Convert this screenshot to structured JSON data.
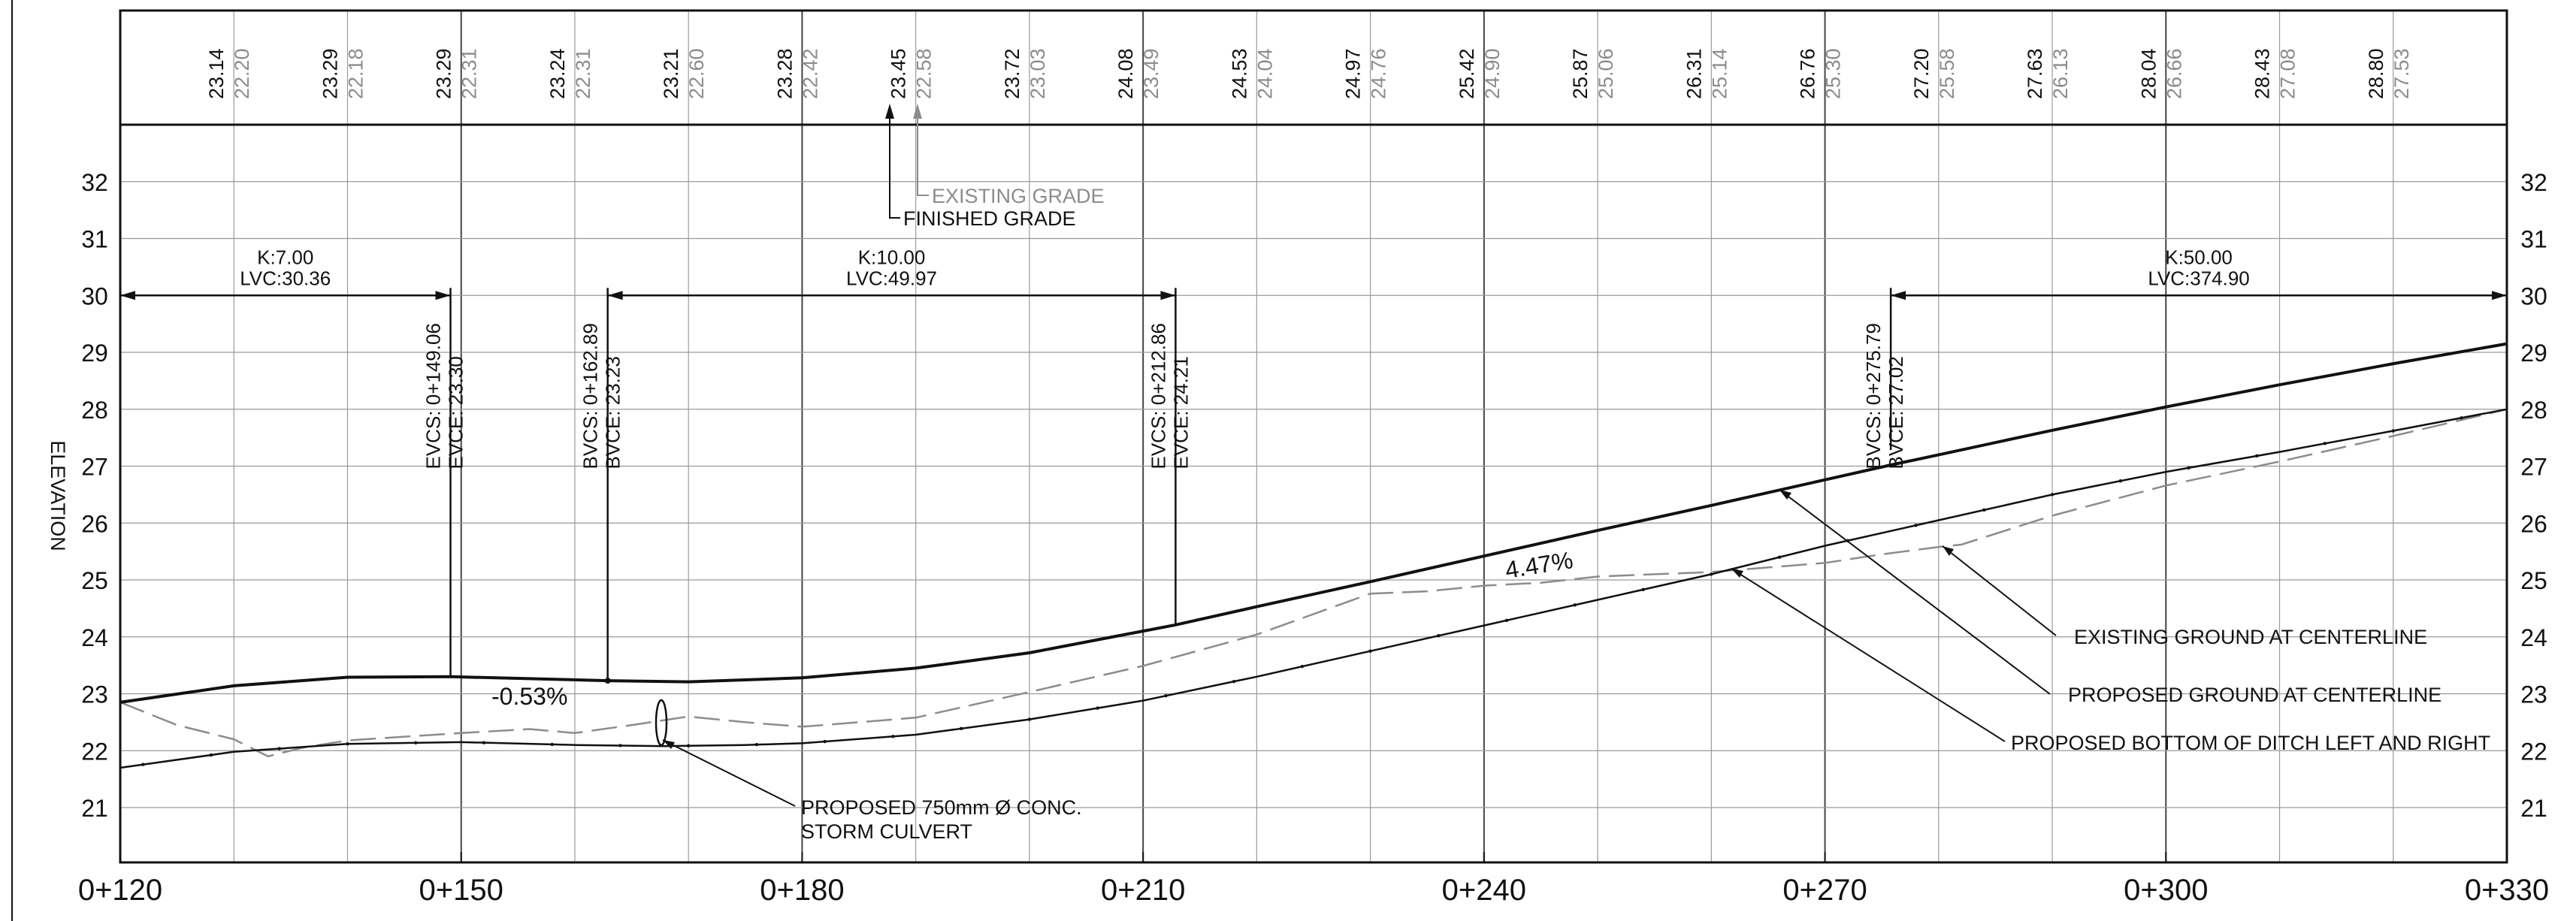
{
  "axis": {
    "y_label": "ELEVATION",
    "x_ticks": [
      "0+120",
      "0+150",
      "0+180",
      "0+210",
      "0+240",
      "0+270",
      "0+300",
      "0+330"
    ],
    "y_ticks": [
      "21",
      "22",
      "23",
      "24",
      "25",
      "26",
      "27",
      "28",
      "29",
      "30",
      "31",
      "32"
    ],
    "station_range": [
      120,
      330
    ],
    "elevation_range": [
      20,
      33
    ]
  },
  "header": {
    "finished_grade": [
      "23.14",
      "23.29",
      "23.29",
      "23.24",
      "23.21",
      "23.28",
      "23.45",
      "23.72",
      "24.08",
      "24.53",
      "24.97",
      "25.42",
      "25.87",
      "26.31",
      "26.76",
      "27.20",
      "27.63",
      "28.04",
      "28.43",
      "28.80"
    ],
    "existing_grade": [
      "22.20",
      "22.18",
      "22.31",
      "22.31",
      "22.60",
      "22.42",
      "22.58",
      "23.03",
      "23.49",
      "24.04",
      "24.76",
      "24.90",
      "25.06",
      "25.14",
      "25.30",
      "25.58",
      "26.13",
      "26.66",
      "27.08",
      "27.53"
    ],
    "legend_existing": "EXISTING GRADE",
    "legend_finished": "FINISHED GRADE"
  },
  "curves": [
    {
      "k": "K:7.00",
      "lvc": "LVC:30.36"
    },
    {
      "k": "K:10.00",
      "lvc": "LVC:49.97"
    },
    {
      "k": "K:50.00",
      "lvc": "LVC:374.90"
    }
  ],
  "markers": [
    {
      "line1": "EVCS: 0+149.06",
      "line2": "EVCE: 23.30"
    },
    {
      "line1": "BVCS: 0+162.89",
      "line2": "BVCE: 23.23"
    },
    {
      "line1": "EVCS: 0+212.86",
      "line2": "EVCE: 24.21"
    },
    {
      "line1": "BVCS: 0+275.79",
      "line2": "BVCE: 27.02"
    }
  ],
  "annotations": {
    "slope_down": "-0.53%",
    "slope_up": "4.47%",
    "culvert_line1": "PROPOSED 750mm Ø CONC.",
    "culvert_line2": "STORM CULVERT",
    "existing_cl": "EXISTING GROUND AT CENTERLINE",
    "proposed_cl": "PROPOSED GROUND AT CENTERLINE",
    "ditch": "PROPOSED BOTTOM OF DITCH LEFT AND RIGHT"
  },
  "colors": {
    "line": "#111111",
    "grid": "#9a9a9a",
    "existing": "#8c8c8c"
  },
  "chart_data": {
    "type": "line",
    "x_unit": "station (m)",
    "y_unit": "elevation (m)",
    "xlim": [
      120,
      330
    ],
    "ylim": [
      20,
      33
    ],
    "grid": true,
    "series": [
      {
        "name": "PROPOSED GROUND AT CENTERLINE",
        "x": [
          120,
          130,
          140,
          149.06,
          155,
          162.89,
          170,
          180,
          190,
          200,
          212.86,
          220,
          230,
          240,
          250,
          260,
          270,
          275.79,
          280,
          290,
          300,
          310,
          320,
          330
        ],
        "y": [
          22.85,
          23.14,
          23.29,
          23.3,
          23.27,
          23.23,
          23.21,
          23.28,
          23.45,
          23.72,
          24.21,
          24.53,
          24.97,
          25.42,
          25.87,
          26.31,
          26.76,
          27.02,
          27.2,
          27.63,
          28.04,
          28.43,
          28.8,
          29.15
        ]
      },
      {
        "name": "EXISTING GROUND AT CENTERLINE",
        "x": [
          120,
          125,
          130,
          133,
          136,
          140,
          150,
          156,
          160,
          165,
          170,
          175,
          180,
          185,
          190,
          200,
          210,
          220,
          230,
          235,
          240,
          245,
          250,
          260,
          270,
          275,
          280,
          282,
          290,
          300,
          310,
          320,
          330
        ],
        "y": [
          22.85,
          22.45,
          22.2,
          21.9,
          22.05,
          22.18,
          22.31,
          22.38,
          22.31,
          22.45,
          22.6,
          22.5,
          22.42,
          22.5,
          22.58,
          23.03,
          23.49,
          24.04,
          24.76,
          24.8,
          24.9,
          24.95,
          25.06,
          25.14,
          25.3,
          25.45,
          25.58,
          25.62,
          26.13,
          26.66,
          27.08,
          27.53,
          28.0
        ]
      },
      {
        "name": "PROPOSED BOTTOM OF DITCH LEFT AND RIGHT",
        "x": [
          120,
          130,
          140,
          150,
          160,
          168,
          175,
          180,
          190,
          200,
          210,
          220,
          230,
          240,
          250,
          260,
          270,
          280,
          290,
          300,
          310,
          320,
          330
        ],
        "y": [
          21.7,
          21.98,
          22.12,
          22.15,
          22.1,
          22.08,
          22.1,
          22.13,
          22.28,
          22.55,
          22.88,
          23.3,
          23.75,
          24.2,
          24.65,
          25.1,
          25.6,
          26.05,
          26.5,
          26.9,
          27.25,
          27.62,
          28.0
        ]
      }
    ],
    "vertical_curves": [
      {
        "type": "EVC",
        "station": 149.06,
        "elevation": 23.3
      },
      {
        "type": "BVC",
        "station": 162.89,
        "elevation": 23.23
      },
      {
        "type": "EVC",
        "station": 212.86,
        "elevation": 24.21
      },
      {
        "type": "BVC",
        "station": 275.79,
        "elevation": 27.02
      }
    ],
    "grades": [
      {
        "label": "-0.53%",
        "value": -0.53
      },
      {
        "label": "4.47%",
        "value": 4.47
      }
    ]
  }
}
